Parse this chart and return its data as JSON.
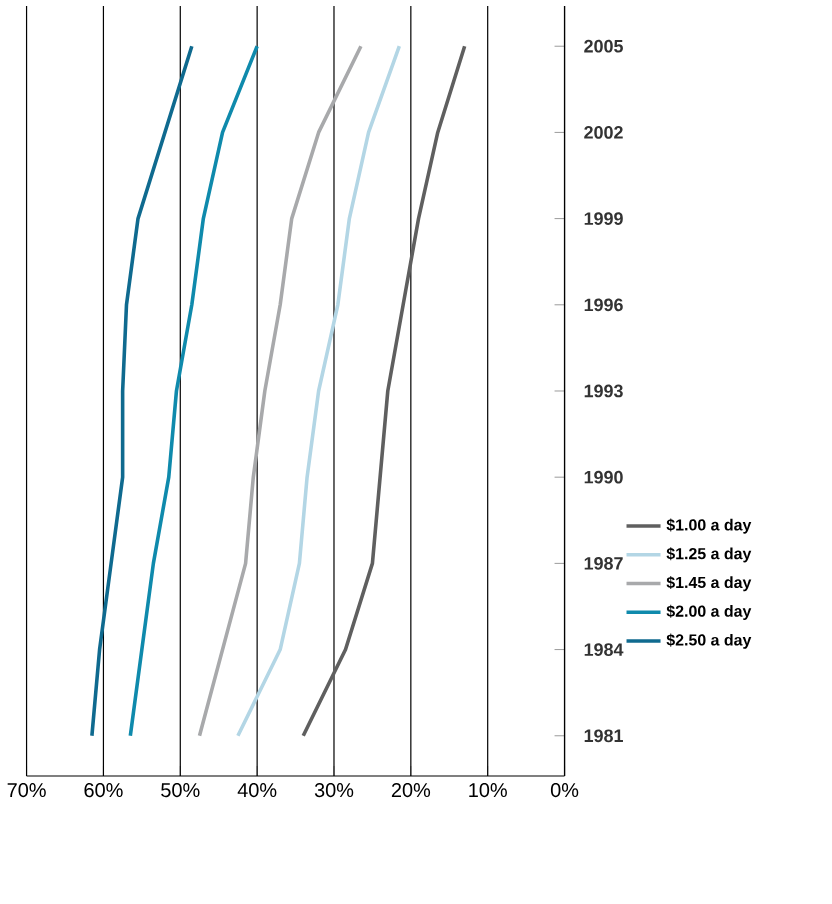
{
  "chart_data": {
    "type": "line",
    "series": [
      {
        "name": "$1.00 a day",
        "color": "#5f5f5f",
        "x": [
          34,
          28.5,
          25,
          24,
          23,
          21,
          19,
          16.5,
          13
        ],
        "values": [
          1981,
          1984,
          1987,
          1990,
          1993,
          1996,
          1999,
          2002,
          2005
        ]
      },
      {
        "name": "$1.25 a day",
        "color": "#b3d6e5",
        "x": [
          42.5,
          37,
          34.5,
          33.5,
          32,
          29.5,
          28,
          25.5,
          21.5
        ],
        "values": [
          1981,
          1984,
          1987,
          1990,
          1993,
          1996,
          1999,
          2002,
          2005
        ]
      },
      {
        "name": "$1.45 a day",
        "color": "#a8a9ab",
        "x": [
          47.5,
          44.5,
          41.5,
          40.5,
          39,
          37,
          35.5,
          32,
          26.5
        ],
        "values": [
          1981,
          1984,
          1987,
          1990,
          1993,
          1996,
          1999,
          2002,
          2005
        ]
      },
      {
        "name": "$2.00 a day",
        "color": "#0f8aac",
        "x": [
          56.5,
          55,
          53.5,
          51.5,
          50.5,
          48.5,
          47,
          44.5,
          40
        ],
        "values": [
          1981,
          1984,
          1987,
          1990,
          1993,
          1996,
          1999,
          2002,
          2005
        ]
      },
      {
        "name": "$2.50 a day",
        "color": "#0f6a8f",
        "x": [
          61.5,
          60.5,
          59,
          57.5,
          57.5,
          57,
          55.5,
          52,
          48.5
        ],
        "values": [
          1981,
          1984,
          1987,
          1990,
          1993,
          1996,
          1999,
          2002,
          2005
        ]
      }
    ],
    "xlim": [
      70,
      0
    ],
    "xticks": [
      {
        "value": 70,
        "label": "70%"
      },
      {
        "value": 60,
        "label": "60%"
      },
      {
        "value": 50,
        "label": "50%"
      },
      {
        "value": 40,
        "label": "40%"
      },
      {
        "value": 30,
        "label": "30%"
      },
      {
        "value": 20,
        "label": "20%"
      },
      {
        "value": 10,
        "label": "10%"
      },
      {
        "value": 0,
        "label": "0%"
      }
    ],
    "ylim": [
      1979.6,
      2006.4
    ],
    "yticks": [
      1981,
      1984,
      1987,
      1990,
      1993,
      1996,
      1999,
      2002,
      2005
    ],
    "grid": "x",
    "legend": "right",
    "marker": "none",
    "line_style": "solid"
  }
}
